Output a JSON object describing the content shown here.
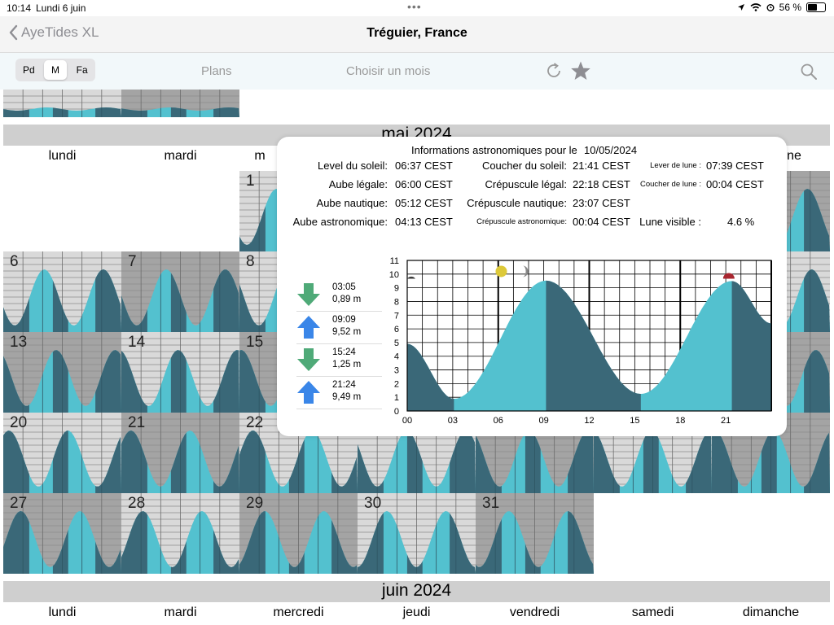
{
  "status_bar": {
    "time": "10:14",
    "date": "Lundi 6 juin",
    "battery": "56 %"
  },
  "nav": {
    "back_label": "AyeTides XL",
    "title": "Tréguier, France"
  },
  "toolbar": {
    "segments": [
      "Pd",
      "M",
      "Fa"
    ],
    "selected_segment": "M",
    "plans_label": "Plans",
    "choose_month_label": "Choisir un mois"
  },
  "colors": {
    "tide_fill": "#53c1cf",
    "tide_dark": "#3a6878",
    "grid_light": "#d9d9d9",
    "grid_dark": "#a4a4a4",
    "arrow_down": "#4faa78",
    "arrow_up": "#3a86e8",
    "sun": "#ddc939",
    "moon_red": "#a8262f"
  },
  "icons": [
    "chevron-left-icon",
    "refresh-icon",
    "star-icon",
    "search-icon",
    "location-icon",
    "wifi-icon",
    "alarm-icon",
    "battery-icon"
  ],
  "calendar": {
    "may": {
      "title": "mai 2024",
      "weekdays_visible": [
        "lundi",
        "mardi",
        "m",
        "ne"
      ],
      "days": [
        "1",
        "6",
        "7",
        "8",
        "13",
        "14",
        "15",
        "20",
        "21",
        "22",
        "27",
        "28",
        "29",
        "30",
        "31"
      ]
    },
    "june": {
      "title": "juin 2024",
      "weekdays": [
        "lundi",
        "mardi",
        "mercredi",
        "jeudi",
        "vendredi",
        "samedi",
        "dimanche"
      ]
    }
  },
  "popup": {
    "header_label": "Informations astronomiques pour le",
    "header_date": "10/05/2024",
    "rows": [
      {
        "l1": "Level du soleil:",
        "v1": "06:37 CEST",
        "l2": "Coucher du soleil:",
        "v2": "21:41 CEST",
        "l3": "Lever de lune :",
        "v3": "07:39 CEST"
      },
      {
        "l1": "Aube légale:",
        "v1": "06:00 CEST",
        "l2": "Crépuscule légal:",
        "v2": "22:18 CEST",
        "l3": "Coucher de lune :",
        "v3": "00:04 CEST"
      },
      {
        "l1": "Aube nautique:",
        "v1": "05:12 CEST",
        "l2": "Crépuscule nautique:",
        "v2": "23:07 CEST"
      },
      {
        "l1": "Aube astronomique:",
        "v1": "04:13 CEST",
        "l2": "Crépuscule astronomique:",
        "v2": "00:04 CEST",
        "l3": "Lune visible :",
        "v3": "4.6 %"
      }
    ],
    "tides": [
      {
        "dir": "down",
        "time": "03:05",
        "height": "0,89 m"
      },
      {
        "dir": "up",
        "time": "09:09",
        "height": "9,52 m"
      },
      {
        "dir": "down",
        "time": "15:24",
        "height": "1,25 m"
      },
      {
        "dir": "up",
        "time": "21:24",
        "height": "9,49 m"
      }
    ]
  },
  "chart_data": {
    "type": "area",
    "title": "",
    "xlabel": "",
    "ylabel": "",
    "x_ticks": [
      "00",
      "03",
      "06",
      "09",
      "12",
      "15",
      "18",
      "21"
    ],
    "y_ticks": [
      "0",
      "1",
      "2",
      "3",
      "4",
      "5",
      "6",
      "7",
      "8",
      "9",
      "10",
      "11"
    ],
    "xlim": [
      0,
      24
    ],
    "ylim": [
      0,
      11
    ],
    "grid": true,
    "x": [
      0,
      3.08,
      9.15,
      15.4,
      21.4,
      24
    ],
    "series": [
      {
        "values": [
          4.9,
          0.89,
          9.52,
          1.25,
          9.49,
          6.4
        ]
      }
    ],
    "extremes": [
      {
        "time": 3.08,
        "height": 0.89,
        "type": "low"
      },
      {
        "time": 9.15,
        "height": 9.52,
        "type": "high"
      },
      {
        "time": 15.4,
        "height": 1.25,
        "type": "low"
      },
      {
        "time": 21.4,
        "height": 9.49,
        "type": "high"
      }
    ],
    "daylight": [
      6.62,
      21.68
    ],
    "sun_marker": [
      6.2,
      10.2
    ],
    "moon_markers": [
      [
        0,
        9.9
      ],
      [
        7.6,
        10.2
      ],
      [
        21.2,
        9.9
      ]
    ]
  }
}
